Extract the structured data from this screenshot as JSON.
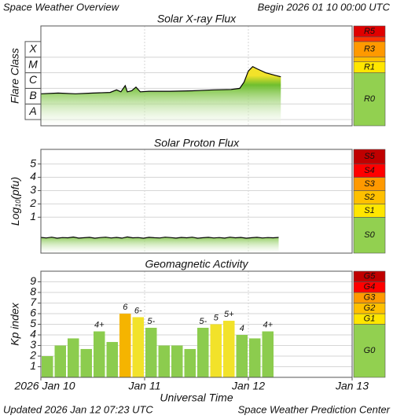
{
  "header": {
    "title": "Space Weather Overview",
    "begin": "Begin 2026 01 10 00:00 UTC"
  },
  "footer": {
    "updated": "Updated 2026 Jan 12 07:23 UTC",
    "source": "Space Weather Prediction Center"
  },
  "chart_data": [
    {
      "type": "line",
      "title": "Solar X-ray Flux",
      "ylabel": "Flare Class",
      "yscale": "log",
      "xlim": [
        0,
        72
      ],
      "ylim": [
        4e-09,
        0.01
      ],
      "yticks": [
        {
          "value": 1e-08,
          "label": "A"
        },
        {
          "value": 1e-07,
          "label": "B"
        },
        {
          "value": 1e-06,
          "label": "C"
        },
        {
          "value": 1e-05,
          "label": "M"
        },
        {
          "value": 0.0001,
          "label": "X"
        }
      ],
      "grid": true,
      "series": [
        {
          "color": "#000000",
          "x": [
            0,
            4,
            8,
            12,
            16,
            17.5,
            18.5,
            19.5,
            20,
            21,
            22,
            23,
            25,
            30,
            35,
            40,
            44,
            46,
            47,
            48,
            49,
            50,
            52,
            54,
            55.5
          ],
          "values": [
            4.5e-07,
            5e-07,
            4.5e-07,
            5e-07,
            5.5e-07,
            8e-07,
            6e-07,
            1.5e-06,
            6e-07,
            7e-07,
            1.2e-06,
            6e-07,
            6.5e-07,
            6.5e-07,
            7e-07,
            8e-07,
            8.5e-07,
            1e-06,
            2.5e-06,
            1.3e-05,
            2.5e-05,
            1.8e-05,
            1e-05,
            7e-06,
            5.5e-06
          ]
        }
      ],
      "scale": {
        "labels": [
          "R0",
          "R1",
          null,
          "R3",
          null,
          "R5"
        ],
        "bounds": [
          1e-05,
          5e-05,
          0.0001,
          0.001,
          0.002
        ],
        "colors": [
          "#92d050",
          "#ffe600",
          "#ffc000",
          "#ff9900",
          "#ff3300",
          "#e00000"
        ]
      }
    },
    {
      "type": "line",
      "title": "Solar Proton Flux",
      "ylabel": {
        "base": "Log",
        "sub": "10",
        "rest": "(pfu)"
      },
      "xlim": [
        0,
        72
      ],
      "ylim": [
        -1.7,
        6.1
      ],
      "yticks": [
        1,
        2,
        3,
        4,
        5
      ],
      "grid": true,
      "series": [
        {
          "color": "#000000",
          "x": [
            0,
            1.25,
            2.5,
            3.75,
            5,
            6.25,
            7.5,
            8.75,
            10,
            11.25,
            12.5,
            13.75,
            15,
            16.25,
            17.5,
            18.75,
            20,
            21.25,
            22.5,
            23.75,
            25,
            26.25,
            27.5,
            28.75,
            30,
            31.25,
            32.5,
            33.75,
            35,
            36.25,
            37.5,
            38.75,
            40,
            41.25,
            42.5,
            43.75,
            45,
            46.25,
            47.5,
            48.75,
            50,
            51.25,
            52.5,
            53.75,
            55
          ],
          "values": [
            -0.52,
            -0.56,
            -0.5,
            -0.58,
            -0.53,
            -0.55,
            -0.49,
            -0.57,
            -0.54,
            -0.51,
            -0.58,
            -0.53,
            -0.5,
            -0.56,
            -0.52,
            -0.57,
            -0.48,
            -0.55,
            -0.53,
            -0.58,
            -0.51,
            -0.54,
            -0.56,
            -0.5,
            -0.53,
            -0.57,
            -0.52,
            -0.55,
            -0.5,
            -0.58,
            -0.54,
            -0.51,
            -0.56,
            -0.53,
            -0.57,
            -0.5,
            -0.55,
            -0.52,
            -0.58,
            -0.54,
            -0.51,
            -0.56,
            -0.53,
            -0.55,
            -0.52
          ]
        }
      ],
      "scale": {
        "labels": [
          "S0",
          "S1",
          "S2",
          "S3",
          "S4",
          "S5"
        ],
        "bounds": [
          1,
          2,
          3,
          4,
          5
        ],
        "colors": [
          "#92d050",
          "#ffe600",
          "#ffc000",
          "#ff9900",
          "#ff0000",
          "#c00000"
        ]
      }
    },
    {
      "type": "bar",
      "title": "Geomagnetic Activity",
      "ylabel": "Kp index",
      "xlabel": "Universal Time",
      "xlim": [
        0,
        72
      ],
      "ylim": [
        0,
        10
      ],
      "yticks": [
        1,
        2,
        3,
        4,
        5,
        6,
        7,
        8,
        9
      ],
      "grid": true,
      "xticks": [
        {
          "value": 0,
          "label": "2026 Jan 10"
        },
        {
          "value": 24,
          "label": "Jan 11"
        },
        {
          "value": 48,
          "label": "Jan 12"
        },
        {
          "value": 72,
          "label": "Jan 13"
        }
      ],
      "bar_width": 3,
      "x": [
        1.5,
        4.5,
        7.5,
        10.5,
        13.5,
        16.5,
        19.5,
        22.5,
        25.5,
        28.5,
        31.5,
        34.5,
        37.5,
        40.5,
        43.5,
        46.5,
        49.5,
        52.5
      ],
      "values": [
        2,
        3,
        3.67,
        2.67,
        4.33,
        3.33,
        6,
        5.67,
        4.67,
        3,
        3,
        2.67,
        4.67,
        5,
        5.33,
        4,
        3.67,
        4.33
      ],
      "value_labels": [
        null,
        null,
        null,
        null,
        "4+",
        null,
        "6",
        "6-",
        "5-",
        null,
        null,
        null,
        "5-",
        "5",
        "5+",
        "4",
        null,
        "4+"
      ],
      "colors": [
        "#8ccc4e",
        "#8ccc4e",
        "#8ccc4e",
        "#8ccc4e",
        "#8ccc4e",
        "#8ccc4e",
        "#f5b400",
        "#f2e22a",
        "#8ccc4e",
        "#8ccc4e",
        "#8ccc4e",
        "#8ccc4e",
        "#8ccc4e",
        "#f2e22a",
        "#f2e22a",
        "#8ccc4e",
        "#8ccc4e",
        "#8ccc4e"
      ],
      "scale": {
        "labels": [
          "G0",
          "G1",
          "G2",
          "G3",
          "G4",
          "G5"
        ],
        "bounds": [
          5,
          6,
          7,
          8,
          9
        ],
        "colors": [
          "#92d050",
          "#ffe600",
          "#ffc000",
          "#ff9900",
          "#ff0000",
          "#c00000"
        ]
      }
    }
  ]
}
